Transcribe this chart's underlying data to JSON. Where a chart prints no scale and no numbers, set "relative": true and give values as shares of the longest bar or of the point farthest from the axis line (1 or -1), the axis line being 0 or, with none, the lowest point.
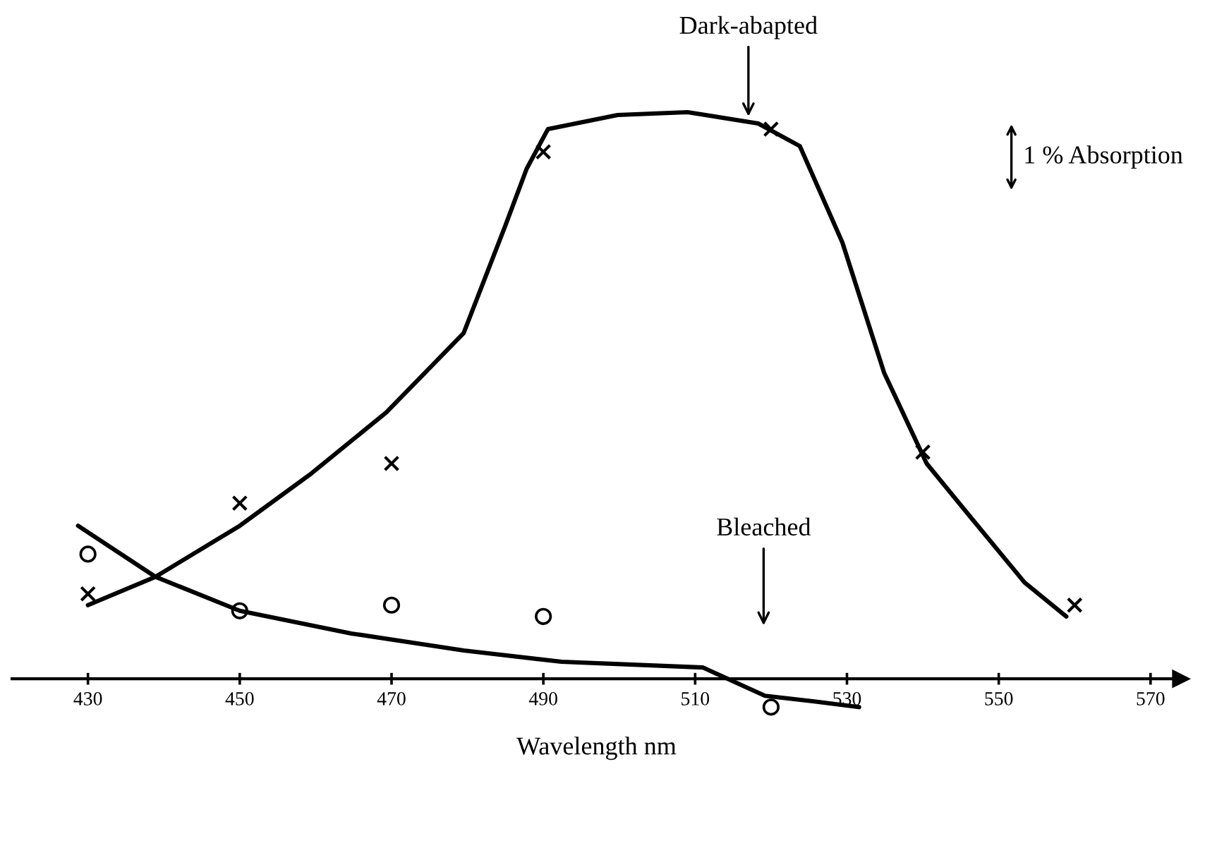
{
  "chart_data": {
    "type": "line",
    "relative": true,
    "xlabel": "Wavelength nm",
    "xlim": [
      420,
      574
    ],
    "xticks": [
      430,
      450,
      470,
      490,
      510,
      530,
      550,
      570
    ],
    "grid": false,
    "legend": false,
    "series": [
      {
        "type": "scatter",
        "marker": "cross",
        "color": "#000000",
        "x": [
          430,
          450,
          470,
          490,
          520,
          540,
          560
        ],
        "values": [
          0.15,
          0.31,
          0.38,
          0.93,
          0.97,
          0.4,
          0.13
        ]
      },
      {
        "type": "scatter",
        "marker": "circle",
        "color": "#000000",
        "x": [
          430,
          450,
          470,
          490,
          520
        ],
        "values": [
          0.22,
          0.12,
          0.13,
          0.11,
          -0.05
        ]
      },
      {
        "marker": "none",
        "line_style": "solid",
        "color": "#000000",
        "x": [
          430,
          438.9,
          450,
          459.2,
          469.3,
          479.5,
          485,
          487.8,
          490.6,
          499.8,
          509,
          518.3,
          523.8,
          529.4,
          534.9,
          540.5,
          546,
          553.4,
          558.9
        ],
        "values": [
          0.13,
          0.18,
          0.27,
          0.36,
          0.47,
          0.61,
          0.8,
          0.9,
          0.97,
          0.995,
          1.0,
          0.98,
          0.94,
          0.77,
          0.54,
          0.38,
          0.29,
          0.17,
          0.11
        ]
      },
      {
        "marker": "none",
        "line_style": "solid",
        "color": "#000000",
        "x": [
          428.7,
          438.9,
          450,
          464.7,
          479.5,
          492.4,
          511,
          519.2,
          525.7,
          531.6
        ],
        "values": [
          0.27,
          0.18,
          0.12,
          0.08,
          0.05,
          0.03,
          0.02,
          -0.03,
          -0.04,
          -0.05
        ]
      }
    ],
    "annotations": [
      "Dark-abapted",
      "Bleached",
      "1 % Absorption"
    ]
  }
}
